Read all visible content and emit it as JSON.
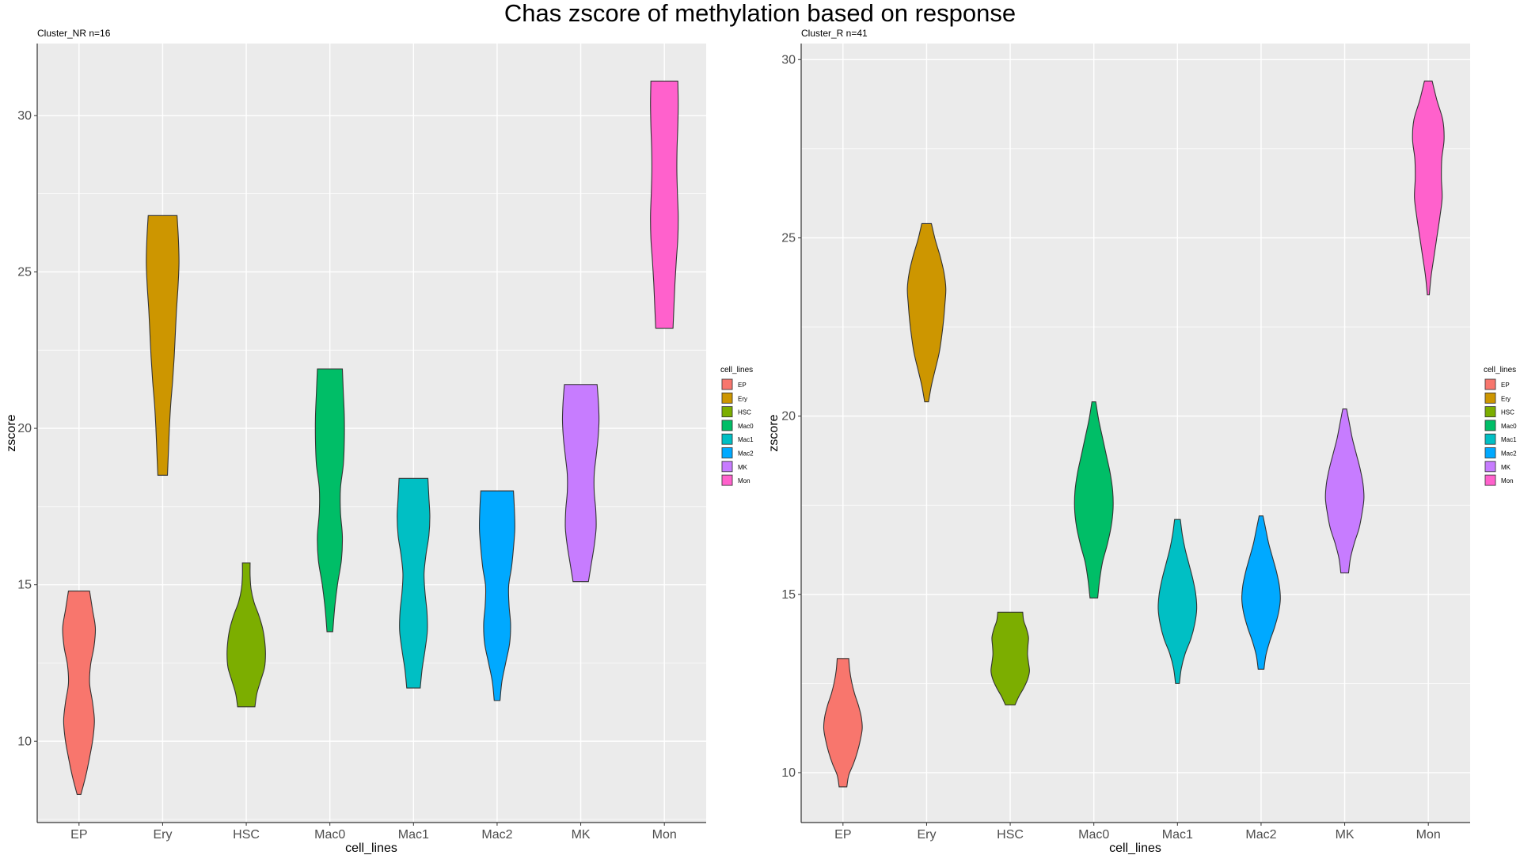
{
  "title": "Chas zscore of methylation based on response",
  "colors": {
    "panel_bg": "#ebebeb",
    "grid": "#ffffff",
    "violin_stroke": "#333333"
  },
  "chart_data": [
    {
      "type": "violin",
      "subtitle": "Cluster_NR n=16",
      "xlabel": "cell_lines",
      "ylabel": "zscore",
      "ylim": [
        7.4,
        32.3
      ],
      "yticks": [
        10,
        15,
        20,
        25,
        30
      ],
      "grid": true,
      "legend_position": "right",
      "legend_title": "cell_lines",
      "categories": [
        "EP",
        "Ery",
        "HSC",
        "Mac0",
        "Mac1",
        "Mac2",
        "MK",
        "Mon"
      ],
      "colors": [
        "#F8766D",
        "#CD9600",
        "#7CAE00",
        "#00BE67",
        "#00BFC4",
        "#00A9FF",
        "#C77CFF",
        "#FF61CC"
      ],
      "series": [
        {
          "category": "EP",
          "min": 8.3,
          "max": 14.8,
          "density": [
            0.1,
            0.35,
            0.55,
            0.72,
            0.8,
            0.7,
            0.55,
            0.6,
            0.78,
            0.85,
            0.7,
            0.55
          ]
        },
        {
          "category": "Ery",
          "min": 18.5,
          "max": 26.8,
          "density": [
            0.25,
            0.3,
            0.35,
            0.42,
            0.52,
            0.6,
            0.66,
            0.72,
            0.8,
            0.85,
            0.82,
            0.75
          ]
        },
        {
          "category": "HSC",
          "min": 11.1,
          "max": 15.7,
          "density": [
            0.45,
            0.55,
            0.75,
            0.95,
            1.0,
            0.96,
            0.85,
            0.65,
            0.4,
            0.25,
            0.2,
            0.2
          ]
        },
        {
          "category": "Mac0",
          "min": 13.5,
          "max": 21.9,
          "density": [
            0.15,
            0.25,
            0.4,
            0.6,
            0.65,
            0.55,
            0.55,
            0.7,
            0.75,
            0.75,
            0.7,
            0.65
          ]
        },
        {
          "category": "Mac1",
          "min": 11.7,
          "max": 18.4,
          "density": [
            0.35,
            0.45,
            0.6,
            0.72,
            0.7,
            0.6,
            0.55,
            0.65,
            0.8,
            0.85,
            0.8,
            0.75
          ]
        },
        {
          "category": "Mac2",
          "min": 11.3,
          "max": 18.0,
          "density": [
            0.15,
            0.25,
            0.45,
            0.65,
            0.7,
            0.62,
            0.6,
            0.75,
            0.85,
            0.92,
            0.9,
            0.85
          ]
        },
        {
          "category": "MK",
          "min": 15.1,
          "max": 21.4,
          "density": [
            0.4,
            0.55,
            0.7,
            0.8,
            0.78,
            0.7,
            0.7,
            0.8,
            0.9,
            0.95,
            0.92,
            0.85
          ]
        },
        {
          "category": "Mon",
          "min": 23.2,
          "max": 31.1,
          "density": [
            0.45,
            0.5,
            0.55,
            0.62,
            0.7,
            0.72,
            0.68,
            0.65,
            0.66,
            0.7,
            0.72,
            0.7
          ]
        }
      ]
    },
    {
      "type": "violin",
      "subtitle": "Cluster_R n=41",
      "xlabel": "cell_lines",
      "ylabel": "zscore",
      "ylim": [
        8.6,
        30.45
      ],
      "yticks": [
        10,
        15,
        20,
        25,
        30
      ],
      "grid": true,
      "legend_position": "right",
      "legend_title": "cell_lines",
      "categories": [
        "EP",
        "Ery",
        "HSC",
        "Mac0",
        "Mac1",
        "Mac2",
        "MK",
        "Mon"
      ],
      "colors": [
        "#F8766D",
        "#CD9600",
        "#7CAE00",
        "#00BE67",
        "#00BFC4",
        "#00A9FF",
        "#C77CFF",
        "#FF61CC"
      ],
      "series": [
        {
          "category": "EP",
          "min": 9.6,
          "max": 13.2,
          "density": [
            0.2,
            0.3,
            0.55,
            0.75,
            0.9,
            1.0,
            0.95,
            0.8,
            0.6,
            0.45,
            0.35,
            0.3
          ]
        },
        {
          "category": "Ery",
          "min": 20.4,
          "max": 25.4,
          "density": [
            0.1,
            0.25,
            0.45,
            0.65,
            0.78,
            0.88,
            0.95,
            1.0,
            0.9,
            0.7,
            0.45,
            0.25
          ]
        },
        {
          "category": "HSC",
          "min": 11.9,
          "max": 14.5,
          "density": [
            0.25,
            0.45,
            0.7,
            0.9,
            1.0,
            0.95,
            0.9,
            0.92,
            0.95,
            0.85,
            0.7,
            0.65
          ]
        },
        {
          "category": "Mac0",
          "min": 14.9,
          "max": 20.4,
          "density": [
            0.2,
            0.3,
            0.45,
            0.7,
            0.9,
            1.0,
            0.98,
            0.85,
            0.65,
            0.45,
            0.25,
            0.1
          ]
        },
        {
          "category": "Mac1",
          "min": 12.5,
          "max": 17.1,
          "density": [
            0.1,
            0.2,
            0.4,
            0.7,
            0.9,
            1.0,
            0.95,
            0.8,
            0.6,
            0.4,
            0.25,
            0.15
          ]
        },
        {
          "category": "Mac2",
          "min": 12.9,
          "max": 17.2,
          "density": [
            0.15,
            0.25,
            0.45,
            0.7,
            0.9,
            1.0,
            0.95,
            0.8,
            0.6,
            0.4,
            0.25,
            0.1
          ]
        },
        {
          "category": "MK",
          "min": 15.6,
          "max": 20.2,
          "density": [
            0.2,
            0.3,
            0.5,
            0.75,
            0.9,
            1.0,
            0.95,
            0.8,
            0.6,
            0.4,
            0.25,
            0.1
          ]
        },
        {
          "category": "Mon",
          "min": 23.4,
          "max": 29.4,
          "density": [
            0.05,
            0.15,
            0.3,
            0.45,
            0.6,
            0.72,
            0.68,
            0.7,
            0.82,
            0.75,
            0.45,
            0.2
          ]
        }
      ]
    }
  ]
}
